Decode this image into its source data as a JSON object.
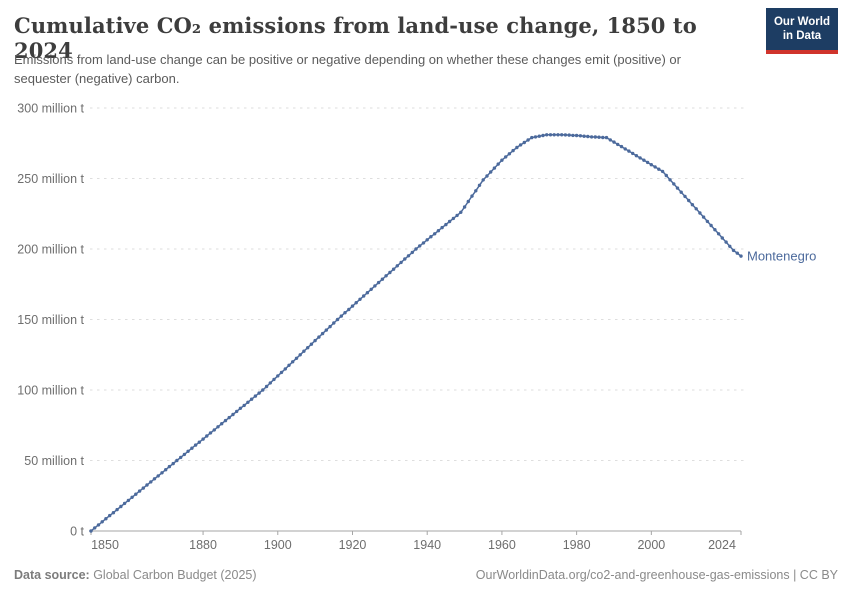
{
  "header": {
    "title": "Cumulative CO₂ emissions from land-use change, 1850 to 2024",
    "subtitle": "Emissions from land-use change can be positive or negative depending on whether these changes emit (positive) or sequester (negative) carbon.",
    "logo": {
      "line1": "Our World",
      "line2": "in Data",
      "bg_color": "#1d3d63",
      "accent_color": "#d0342c"
    }
  },
  "chart_data": {
    "type": "line",
    "title": "Cumulative CO₂ emissions from land-use change, 1850 to 2024",
    "entity_label": "Montenegro",
    "line_color": "#4C6A9C",
    "grid": true,
    "unit": "million t",
    "ylim": [
      0,
      300
    ],
    "y_ticks": [
      {
        "value": 0,
        "label": "0 t"
      },
      {
        "value": 50,
        "label": "50 million t"
      },
      {
        "value": 100,
        "label": "100 million t"
      },
      {
        "value": 150,
        "label": "150 million t"
      },
      {
        "value": 200,
        "label": "200 million t"
      },
      {
        "value": 250,
        "label": "250 million t"
      },
      {
        "value": 300,
        "label": "300 million t"
      }
    ],
    "x_start": 1850,
    "x_end": 2024,
    "x_ticks": [
      1850,
      1880,
      1900,
      1920,
      1940,
      1960,
      1980,
      2000,
      2024
    ],
    "series": [
      {
        "name": "Montenegro",
        "values": [
          0,
          2.2,
          4.3,
          6.5,
          8.7,
          10.9,
          13,
          15.2,
          17.4,
          19.6,
          21.7,
          23.9,
          26.1,
          28.3,
          30.4,
          32.6,
          34.8,
          37,
          39.1,
          41.3,
          43.5,
          45.7,
          47.8,
          50,
          52.2,
          54.3,
          56.5,
          58.7,
          60.9,
          63,
          65.2,
          67.4,
          69.6,
          71.7,
          73.9,
          76.1,
          78.3,
          80.4,
          82.6,
          84.8,
          87,
          89.1,
          91.3,
          93.5,
          95.7,
          97.8,
          100,
          102.5,
          105,
          107.5,
          110,
          112.5,
          115,
          117.5,
          120,
          122.5,
          125,
          127.5,
          130,
          132.5,
          135,
          137.5,
          140,
          142.5,
          145,
          147.5,
          150,
          152.4,
          154.8,
          157.1,
          159.5,
          161.9,
          164.3,
          166.7,
          169,
          171.4,
          173.8,
          176.2,
          178.6,
          181,
          183.3,
          185.7,
          188.1,
          190.5,
          192.9,
          195.2,
          197.6,
          200,
          202.2,
          204.3,
          206.5,
          208.7,
          210.8,
          213,
          215.2,
          217.3,
          219.5,
          221.7,
          223.8,
          226,
          229.8,
          233.7,
          237.5,
          241.3,
          245.2,
          249,
          251.8,
          254.6,
          257.4,
          260.2,
          263,
          265.3,
          267.5,
          269.8,
          272,
          273.8,
          275.5,
          277.3,
          279,
          279.5,
          280,
          280.5,
          281,
          281,
          281,
          281,
          281,
          280.9,
          280.8,
          280.6,
          280.5,
          280.3,
          280,
          279.8,
          279.5,
          279.4,
          279.3,
          279.1,
          279,
          277.4,
          275.8,
          274.2,
          272.6,
          271,
          269.4,
          267.8,
          266.2,
          264.6,
          263,
          261.4,
          259.8,
          258.2,
          256.6,
          255,
          252.1,
          249.1,
          246.2,
          243.2,
          240.3,
          237.3,
          234.4,
          231.4,
          228.5,
          225.5,
          222.6,
          219.6,
          216.7,
          213.7,
          210.8,
          207.8,
          204.9,
          201.9,
          199,
          197,
          195
        ]
      }
    ]
  },
  "footer": {
    "source_label": "Data source:",
    "source_text": " Global Carbon Budget (2025)",
    "credit": "OurWorldinData.org/co2-and-greenhouse-gas-emissions | CC BY"
  }
}
